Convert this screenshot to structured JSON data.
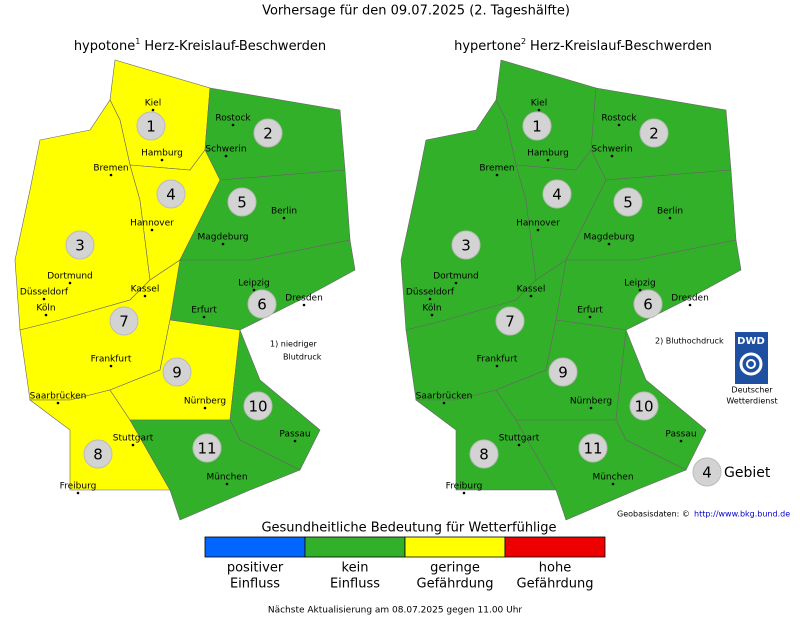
{
  "title": "Vorhersage für den 09.07.2025 (2. Tageshälfte)",
  "maps": [
    {
      "heading": "hypotone",
      "footnote_mark": "1",
      "subject": "Herz-Kreislauf-Beschwerden",
      "regions": [
        {
          "number": "1",
          "color": "#ffff00"
        },
        {
          "number": "2",
          "color": "#33b02a"
        },
        {
          "number": "3",
          "color": "#ffff00"
        },
        {
          "number": "4",
          "color": "#ffff00"
        },
        {
          "number": "5",
          "color": "#33b02a"
        },
        {
          "number": "6",
          "color": "#33b02a"
        },
        {
          "number": "7",
          "color": "#ffff00"
        },
        {
          "number": "8",
          "color": "#ffff00"
        },
        {
          "number": "9",
          "color": "#ffff00"
        },
        {
          "number": "10",
          "color": "#33b02a"
        },
        {
          "number": "11",
          "color": "#33b02a"
        }
      ],
      "note": [
        "1) niedriger",
        "Blutdruck"
      ]
    },
    {
      "heading": "hypertone",
      "footnote_mark": "2",
      "subject": "Herz-Kreislauf-Beschwerden",
      "regions": [
        {
          "number": "1",
          "color": "#33b02a"
        },
        {
          "number": "2",
          "color": "#33b02a"
        },
        {
          "number": "3",
          "color": "#33b02a"
        },
        {
          "number": "4",
          "color": "#33b02a"
        },
        {
          "number": "5",
          "color": "#33b02a"
        },
        {
          "number": "6",
          "color": "#33b02a"
        },
        {
          "number": "7",
          "color": "#33b02a"
        },
        {
          "number": "8",
          "color": "#33b02a"
        },
        {
          "number": "9",
          "color": "#33b02a"
        },
        {
          "number": "10",
          "color": "#33b02a"
        },
        {
          "number": "11",
          "color": "#33b02a"
        }
      ],
      "note": [
        "2) Bluthochdruck"
      ]
    }
  ],
  "cities": [
    "Kiel",
    "Rostock",
    "Hamburg",
    "Schwerin",
    "Bremen",
    "Hannover",
    "Berlin",
    "Magdeburg",
    "Dortmund",
    "Düsseldorf",
    "Köln",
    "Kassel",
    "Leipzig",
    "Dresden",
    "Erfurt",
    "Frankfurt",
    "Saarbrücken",
    "Nürnberg",
    "Stuttgart",
    "Passau",
    "Freiburg",
    "München"
  ],
  "logo": {
    "text": "DWD",
    "caption": [
      "Deutscher",
      "Wetterdienst"
    ]
  },
  "area_key": {
    "number": "4",
    "label": "Gebiet"
  },
  "source": {
    "label": "Geobasisdaten: ©",
    "link": "http://www.bkg.bund.de"
  },
  "legend": {
    "title": "Gesundheitliche Bedeutung für Wetterfühlige",
    "items": [
      {
        "color": "#0066ff",
        "label": [
          "positiver",
          "Einfluss"
        ]
      },
      {
        "color": "#33b02a",
        "label": [
          "kein",
          "Einfluss"
        ]
      },
      {
        "color": "#ffff00",
        "label": [
          "geringe",
          "Gefährdung"
        ]
      },
      {
        "color": "#ee0000",
        "label": [
          "hohe",
          "Gefährdung"
        ]
      }
    ]
  },
  "footer": "Nächste Aktualisierung am 08.07.2025 gegen 11.00 Uhr"
}
